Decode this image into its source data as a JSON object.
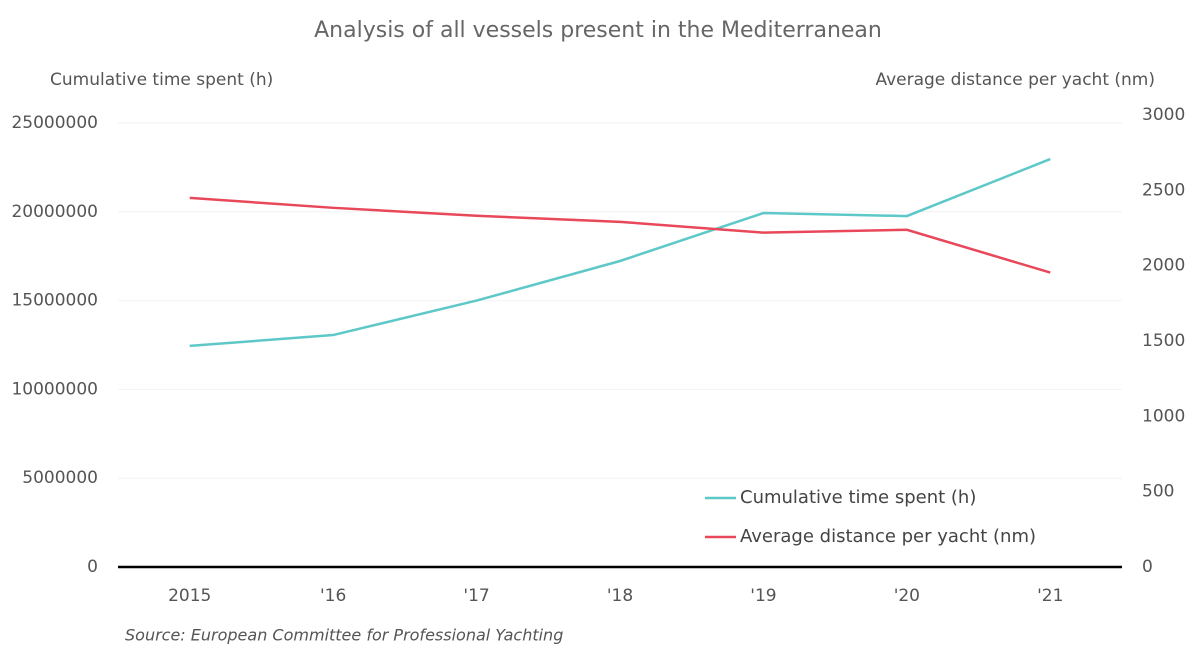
{
  "chart_data": {
    "type": "line",
    "title": "Analysis of all vessels present in the Mediterranean",
    "y_label": "Cumulative time spent (h)",
    "y2_label": "Average distance per yacht (nm)",
    "source": "Source: European Committee for Professional Yachting",
    "categories": [
      "2015",
      "'16",
      "'17",
      "'18",
      "'19",
      "'20",
      "'21"
    ],
    "series": [
      {
        "name": "Cumulative time spent (h)",
        "color": "#5ec8c8",
        "values": [
          12450000,
          13060000,
          15000000,
          17230000,
          19930000,
          19760000,
          22970000
        ]
      },
      {
        "name": "Average distance per yacht (nm)",
        "color": "#e8485a",
        "axis": "y2",
        "values": [
          2450,
          2384,
          2331,
          2291,
          2219,
          2238,
          1954
        ]
      }
    ],
    "ylim": [
      0,
      25000000
    ],
    "yticks": [
      0,
      5000000,
      10000000,
      15000000,
      20000000,
      25000000
    ],
    "y2lim": [
      0,
      3000
    ],
    "y2ticks": [
      0,
      500,
      1000,
      1500,
      2000,
      2500,
      3000
    ],
    "grid": true
  }
}
